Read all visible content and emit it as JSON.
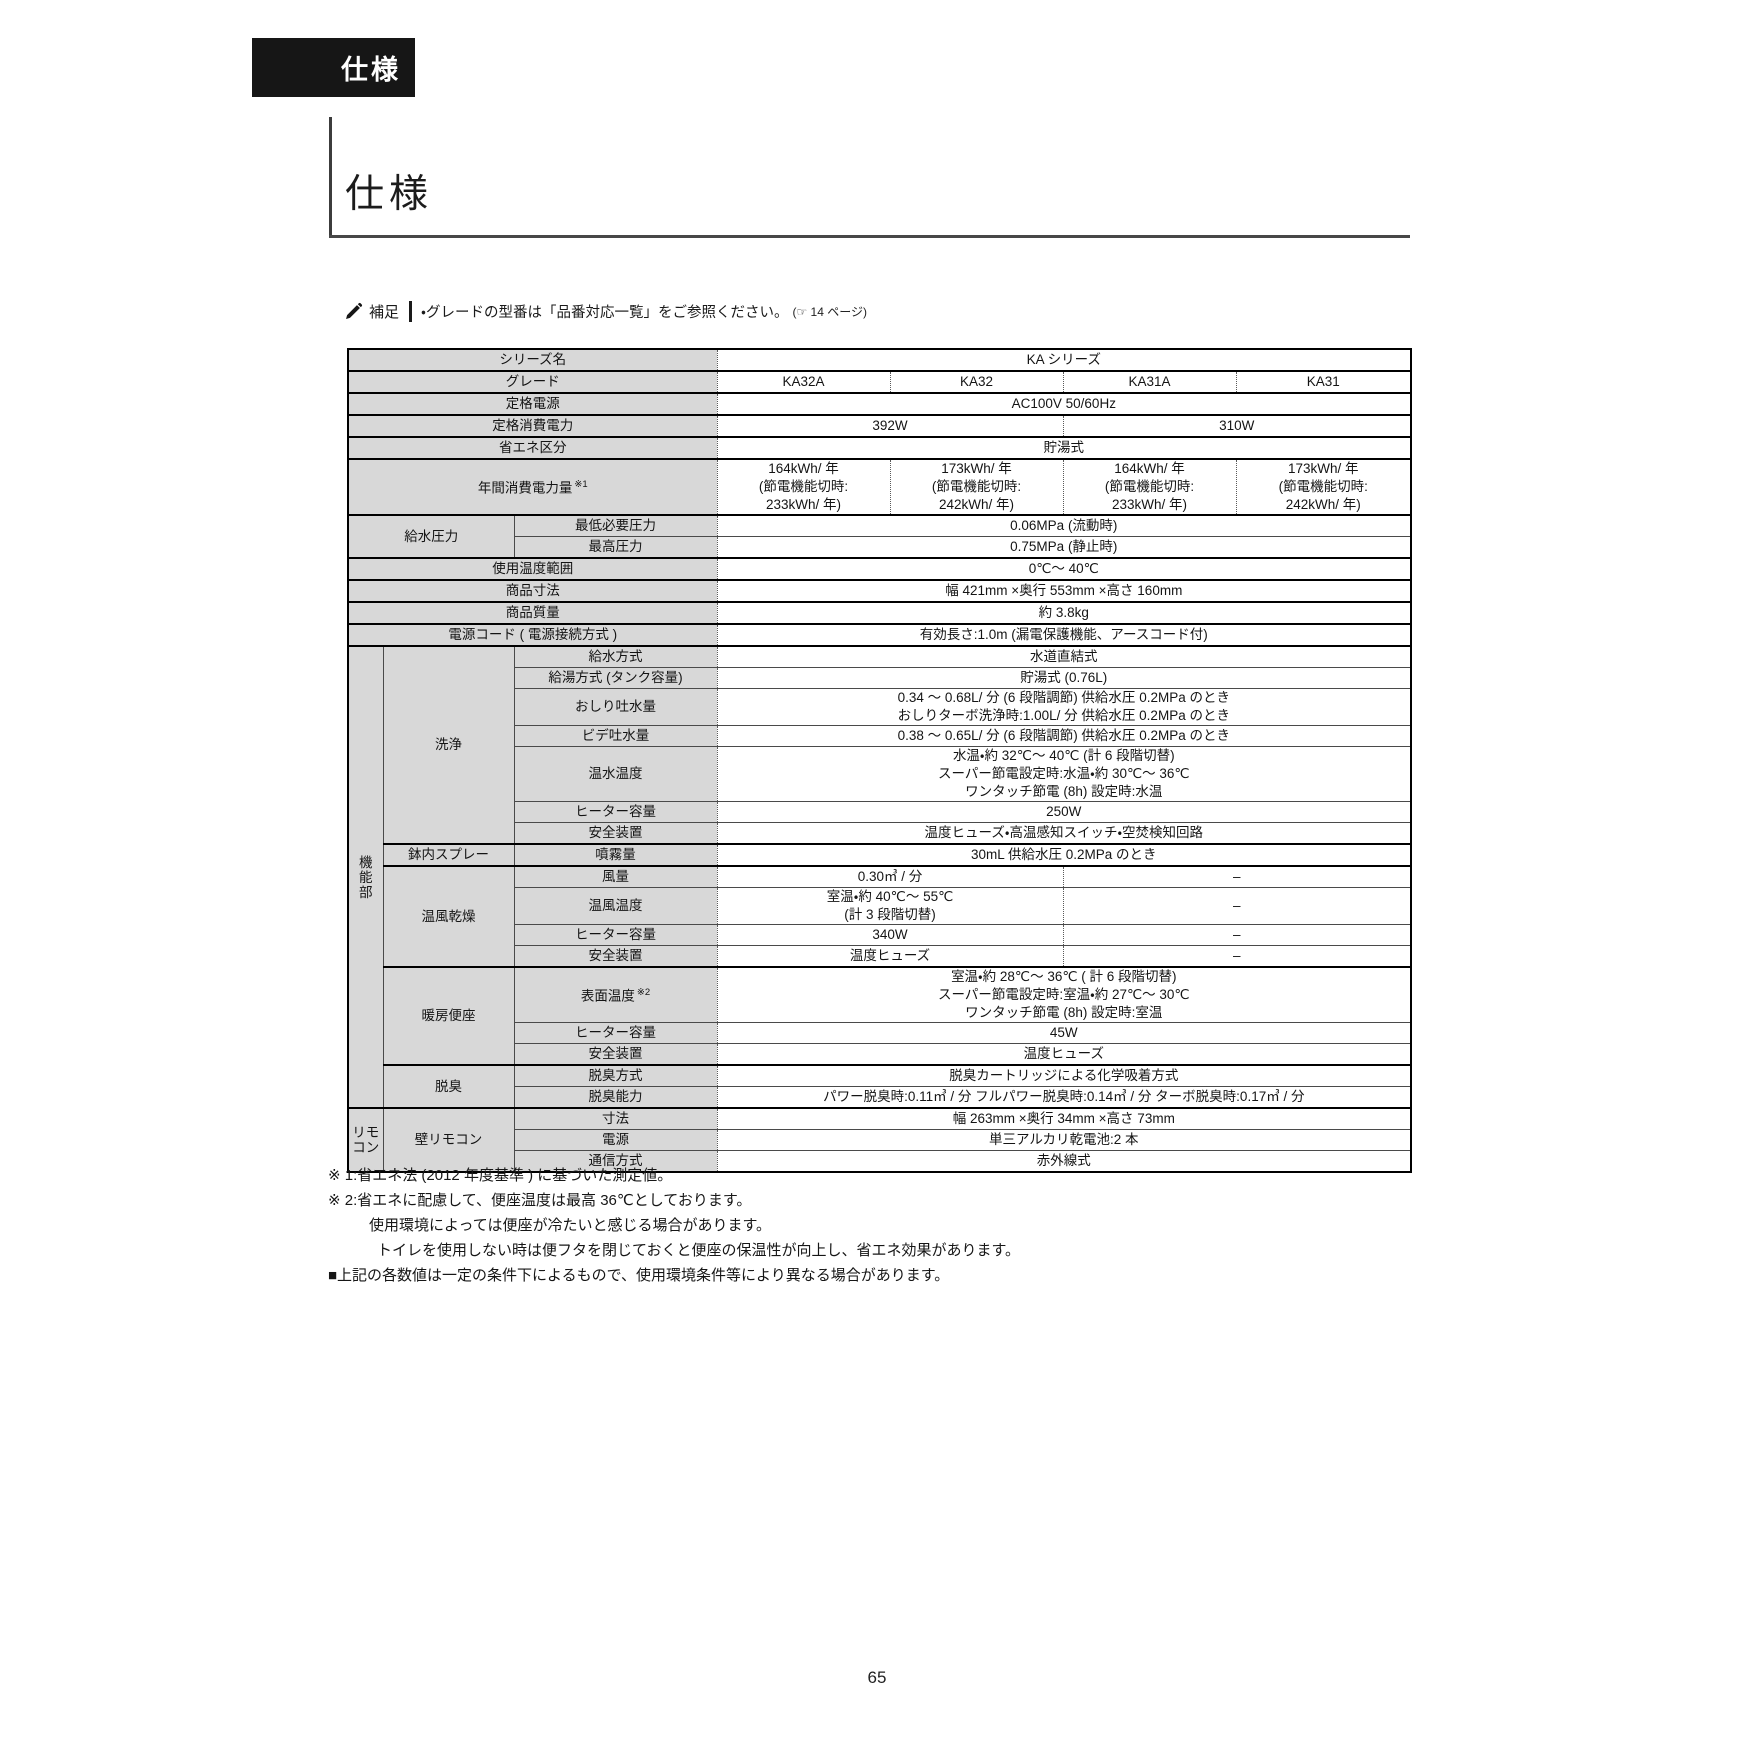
{
  "page": {
    "number": "65"
  },
  "colors": {
    "tab_background": "#161616",
    "label_gray": "#d8d8d8",
    "border_black": "#000000"
  },
  "header": {
    "tab_label": "仕様",
    "title": "仕様"
  },
  "note": {
    "label": "補足",
    "text": "・グレードの型番は「品番対応一覧」をご参照ください。",
    "ref": "(☞ 14 ページ)"
  },
  "spec_table": {
    "series_row_label": "シリーズ名",
    "series_name": "KA シリーズ",
    "grades": [
      "KA32A",
      "KA32",
      "KA31A",
      "KA31"
    ],
    "rows": [
      {
        "tk": true,
        "cells": [
          {
            "k": "l",
            "cs": 3,
            "t": "シリーズ名"
          },
          {
            "k": "d",
            "cs": 4,
            "t": "KA シリーズ"
          }
        ]
      },
      {
        "tk": true,
        "cells": [
          {
            "k": "l",
            "cs": 3,
            "t": "グレード"
          },
          {
            "k": "d",
            "t": "KA32A"
          },
          {
            "k": "d",
            "t": "KA32"
          },
          {
            "k": "d",
            "t": "KA31A"
          },
          {
            "k": "d",
            "t": "KA31"
          }
        ]
      },
      {
        "tk": true,
        "cells": [
          {
            "k": "l",
            "cs": 3,
            "t": "定格電源"
          },
          {
            "k": "d",
            "cs": 4,
            "t": "AC100V 50/60Hz"
          }
        ]
      },
      {
        "tk": true,
        "cells": [
          {
            "k": "l",
            "cs": 3,
            "t": "定格消費電力"
          },
          {
            "k": "d",
            "cs": 2,
            "t": "392W"
          },
          {
            "k": "d",
            "cs": 2,
            "t": "310W"
          }
        ]
      },
      {
        "tk": true,
        "cells": [
          {
            "k": "l",
            "cs": 3,
            "t": "省エネ区分"
          },
          {
            "k": "d",
            "cs": 4,
            "t": "貯湯式"
          }
        ]
      },
      {
        "tk": true,
        "cells": [
          {
            "k": "l",
            "cs": 3,
            "t": "年間消費電力量",
            "sup": "※1"
          },
          {
            "k": "d",
            "t": "164kWh/ 年\n(節電機能切時:\n233kWh/ 年)"
          },
          {
            "k": "d",
            "t": "173kWh/ 年\n(節電機能切時:\n242kWh/ 年)"
          },
          {
            "k": "d",
            "t": "164kWh/ 年\n(節電機能切時:\n233kWh/ 年)"
          },
          {
            "k": "d",
            "t": "173kWh/ 年\n(節電機能切時:\n242kWh/ 年)"
          }
        ]
      },
      {
        "tk": true,
        "cells": [
          {
            "k": "g",
            "cs": 2,
            "rs": 2,
            "t": "給水圧力"
          },
          {
            "k": "l",
            "t": "最低必要圧力"
          },
          {
            "k": "d",
            "cs": 4,
            "t": "0.06MPa (流動時)"
          }
        ]
      },
      {
        "tk": false,
        "cells": [
          {
            "k": "l",
            "t": "最高圧力"
          },
          {
            "k": "d",
            "cs": 4,
            "t": "0.75MPa (静止時)"
          }
        ]
      },
      {
        "tk": true,
        "cells": [
          {
            "k": "l",
            "cs": 3,
            "t": "使用温度範囲"
          },
          {
            "k": "d",
            "cs": 4,
            "t": "0℃～ 40℃"
          }
        ]
      },
      {
        "tk": true,
        "cells": [
          {
            "k": "l",
            "cs": 3,
            "t": "商品寸法"
          },
          {
            "k": "d",
            "cs": 4,
            "t": "幅 421mm ×奥行 553mm ×高さ 160mm"
          }
        ]
      },
      {
        "tk": true,
        "cells": [
          {
            "k": "l",
            "cs": 3,
            "t": "商品質量"
          },
          {
            "k": "d",
            "cs": 4,
            "t": "約 3.8kg"
          }
        ]
      },
      {
        "tk": true,
        "cells": [
          {
            "k": "l",
            "cs": 3,
            "t": "電源コード ( 電源接続方式 )"
          },
          {
            "k": "d",
            "cs": 4,
            "t": "有効長さ:1.0m (漏電保護機能、アースコード付)"
          }
        ]
      },
      {
        "tk": true,
        "cells": [
          {
            "k": "v",
            "rs": 17,
            "t": "機\n能\n部"
          },
          {
            "k": "g",
            "rs": 7,
            "t": "洗浄"
          },
          {
            "k": "l",
            "t": "給水方式"
          },
          {
            "k": "d",
            "cs": 4,
            "t": "水道直結式"
          }
        ]
      },
      {
        "tk": false,
        "cells": [
          {
            "k": "l",
            "t": "給湯方式 (タンク容量)"
          },
          {
            "k": "d",
            "cs": 4,
            "t": "貯湯式 (0.76L)"
          }
        ]
      },
      {
        "tk": false,
        "cells": [
          {
            "k": "l",
            "t": "おしり吐水量"
          },
          {
            "k": "d",
            "cs": 4,
            "t": "0.34 ～ 0.68L/ 分 (6 段階調節)  供給水圧 0.2MPa のとき\nおしりターボ洗浄時:1.00L/ 分 供給水圧 0.2MPa のとき"
          }
        ]
      },
      {
        "tk": false,
        "cells": [
          {
            "k": "l",
            "t": "ビデ吐水量"
          },
          {
            "k": "d",
            "cs": 4,
            "t": "0.38 ～ 0.65L/ 分 (6 段階調節)  供給水圧 0.2MPa のとき"
          }
        ]
      },
      {
        "tk": false,
        "cells": [
          {
            "k": "l",
            "t": "温水温度"
          },
          {
            "k": "d",
            "cs": 4,
            "t": "水温・約 32℃～ 40℃ (計 6 段階切替)\nスーパー節電設定時:水温・約 30℃～ 36℃\nワンタッチ節電 (8h) 設定時:水温"
          }
        ]
      },
      {
        "tk": false,
        "cells": [
          {
            "k": "l",
            "t": "ヒーター容量"
          },
          {
            "k": "d",
            "cs": 4,
            "t": "250W"
          }
        ]
      },
      {
        "tk": false,
        "cells": [
          {
            "k": "l",
            "t": "安全装置"
          },
          {
            "k": "d",
            "cs": 4,
            "t": "温度ヒューズ・高温感知スイッチ・空焚検知回路"
          }
        ]
      },
      {
        "tk": true,
        "cells": [
          {
            "k": "g",
            "t": "鉢内スプレー"
          },
          {
            "k": "l",
            "t": "噴霧量"
          },
          {
            "k": "d",
            "cs": 4,
            "t": "30mL 供給水圧 0.2MPa のとき"
          }
        ]
      },
      {
        "tk": true,
        "cells": [
          {
            "k": "g",
            "rs": 4,
            "t": "温風乾燥"
          },
          {
            "k": "l",
            "t": "風量"
          },
          {
            "k": "d",
            "cs": 2,
            "t": "0.30㎥ / 分"
          },
          {
            "k": "d",
            "cs": 2,
            "t": "–"
          }
        ]
      },
      {
        "tk": false,
        "cells": [
          {
            "k": "l",
            "t": "温風温度"
          },
          {
            "k": "d",
            "cs": 2,
            "t": "室温・約 40℃～ 55℃\n(計 3 段階切替)"
          },
          {
            "k": "d",
            "cs": 2,
            "t": "–"
          }
        ]
      },
      {
        "tk": false,
        "cells": [
          {
            "k": "l",
            "t": "ヒーター容量"
          },
          {
            "k": "d",
            "cs": 2,
            "t": "340W"
          },
          {
            "k": "d",
            "cs": 2,
            "t": "–"
          }
        ]
      },
      {
        "tk": false,
        "cells": [
          {
            "k": "l",
            "t": "安全装置"
          },
          {
            "k": "d",
            "cs": 2,
            "t": "温度ヒューズ"
          },
          {
            "k": "d",
            "cs": 2,
            "t": "–"
          }
        ]
      },
      {
        "tk": true,
        "cells": [
          {
            "k": "g",
            "rs": 3,
            "t": "暖房便座"
          },
          {
            "k": "l",
            "t": "表面温度",
            "sup": "※2"
          },
          {
            "k": "d",
            "cs": 4,
            "t": "室温・約 28℃～ 36℃ ( 計 6 段階切替)\nスーパー節電設定時:室温・約 27℃～ 30℃\nワンタッチ節電 (8h)  設定時:室温"
          }
        ]
      },
      {
        "tk": false,
        "cells": [
          {
            "k": "l",
            "t": "ヒーター容量"
          },
          {
            "k": "d",
            "cs": 4,
            "t": "45W"
          }
        ]
      },
      {
        "tk": false,
        "cells": [
          {
            "k": "l",
            "t": "安全装置"
          },
          {
            "k": "d",
            "cs": 4,
            "t": "温度ヒューズ"
          }
        ]
      },
      {
        "tk": true,
        "cells": [
          {
            "k": "g",
            "rs": 2,
            "t": "脱臭"
          },
          {
            "k": "l",
            "t": "脱臭方式"
          },
          {
            "k": "d",
            "cs": 4,
            "t": "脱臭カートリッジによる化学吸着方式"
          }
        ]
      },
      {
        "tk": false,
        "cells": [
          {
            "k": "l",
            "t": "脱臭能力"
          },
          {
            "k": "d",
            "cs": 4,
            "t": "パワー脱臭時:0.11㎥ / 分 フルパワー脱臭時:0.14㎥ / 分 ターボ脱臭時:0.17㎥ / 分"
          }
        ]
      },
      {
        "tk": true,
        "cells": [
          {
            "k": "v",
            "rs": 3,
            "t": "リモ\nコン"
          },
          {
            "k": "g",
            "rs": 3,
            "t": "壁リモコン"
          },
          {
            "k": "l",
            "t": "寸法"
          },
          {
            "k": "d",
            "cs": 4,
            "t": "幅 263mm ×奥行 34mm ×高さ 73mm"
          }
        ]
      },
      {
        "tk": false,
        "cells": [
          {
            "k": "l",
            "t": "電源"
          },
          {
            "k": "d",
            "cs": 4,
            "t": "単三アルカリ乾電池:2 本"
          }
        ]
      },
      {
        "tk": false,
        "cells": [
          {
            "k": "l",
            "t": "通信方式"
          },
          {
            "k": "d",
            "cs": 4,
            "t": "赤外線式"
          }
        ]
      }
    ]
  },
  "footnotes": [
    {
      "indent": 0,
      "text": "※ 1:省エネ法 (2012 年度基準 ) に基づいた測定値。"
    },
    {
      "indent": 0,
      "text": "※ 2:省エネに配慮して、便座温度は最高 36℃としております。"
    },
    {
      "indent": 1,
      "text": "使用環境によっては便座が冷たいと感じる場合があります。"
    },
    {
      "indent": 2,
      "text": "トイレを使用しない時は便フタを閉じておくと便座の保温性が向上し、省エネ効果があります。"
    },
    {
      "indent": 0,
      "text": "■上記の各数値は一定の条件下によるもので、使用環境条件等により異なる場合があります。"
    }
  ]
}
